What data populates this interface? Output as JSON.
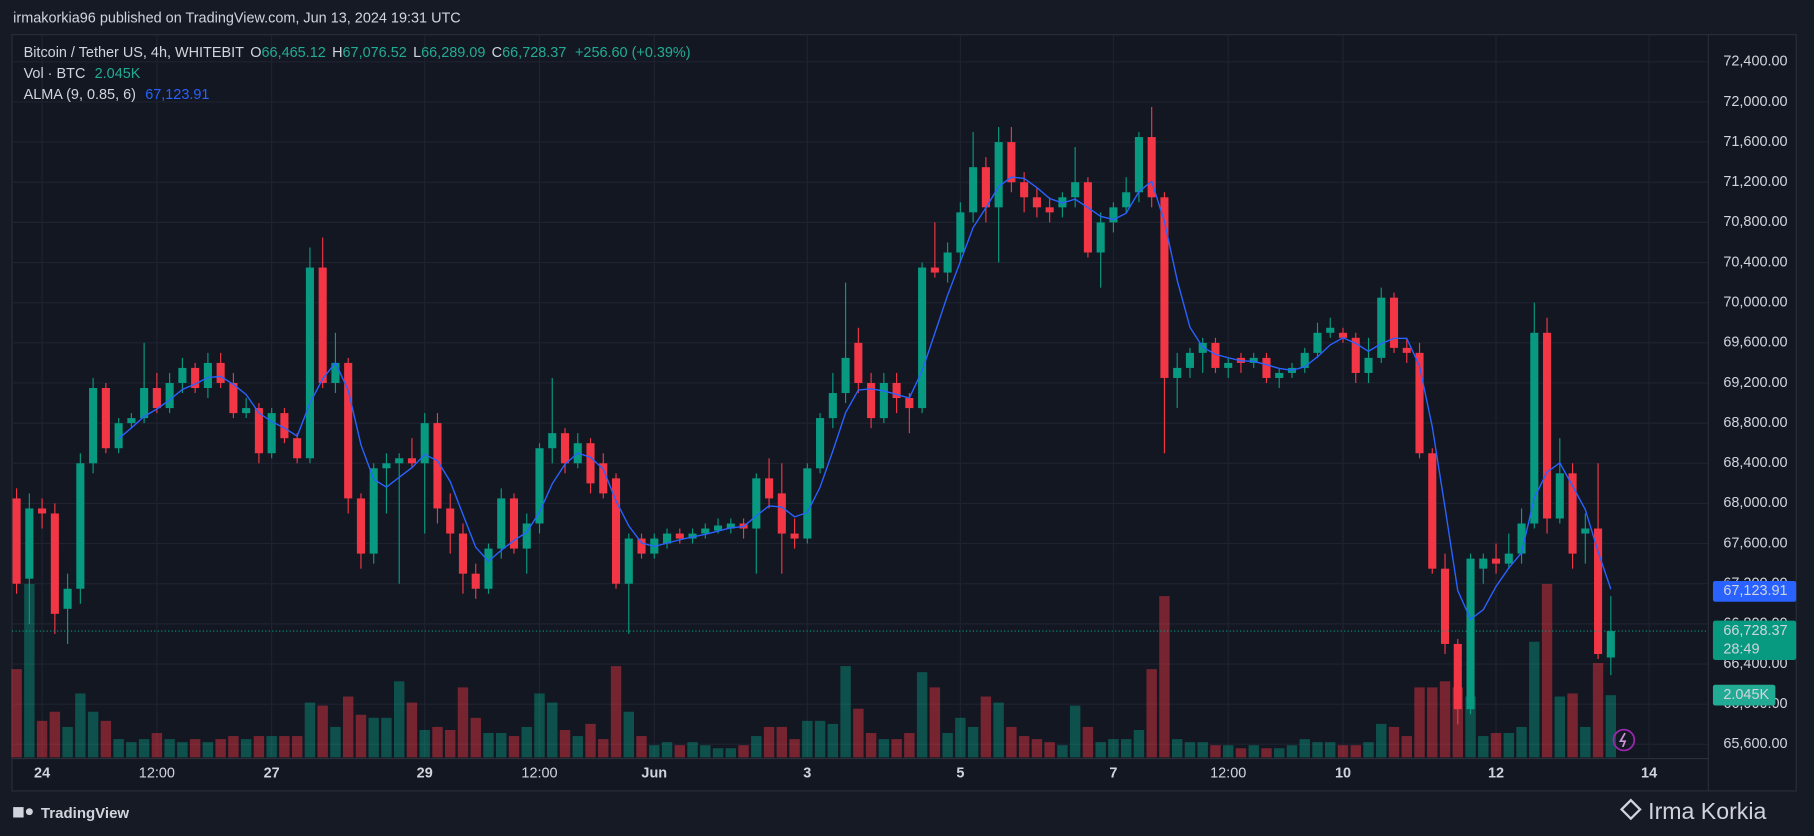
{
  "header": {
    "publisher": "irmakorkia96 published on TradingView.com, Jun 13, 2024 19:31 UTC"
  },
  "footer": {
    "brand": "TradingView",
    "watermark": "Irma Korkia"
  },
  "chart_data": {
    "type": "candlestick",
    "symbol": "Bitcoin / Tether US, 4h, WHITEBIT",
    "legend": {
      "open_label": "O",
      "open": "66,465.12",
      "high_label": "H",
      "high": "67,076.52",
      "low_label": "L",
      "low": "66,289.09",
      "close_label": "C",
      "close": "66,728.37",
      "change": "+256.60 (+0.39%)"
    },
    "volume_label": "Vol · BTC",
    "volume_value": "2.045K",
    "indicator_label": "ALMA (9, 0.85, 6)",
    "indicator_value": "67,123.91",
    "alma_params": [
      9,
      0.85,
      6
    ],
    "alma_color": "#2962ff",
    "up_color": "#089981",
    "down_color": "#f23645",
    "ohlc": [
      [
        68050,
        68150,
        67100,
        67200
      ],
      [
        67250,
        68100,
        66800,
        67950
      ],
      [
        67950,
        68050,
        67750,
        67900
      ],
      [
        67900,
        68000,
        66700,
        66900
      ],
      [
        66950,
        67300,
        66600,
        67150
      ],
      [
        67150,
        68500,
        67000,
        68400
      ],
      [
        68400,
        69250,
        68300,
        69150
      ],
      [
        69150,
        69200,
        68500,
        68550
      ],
      [
        68550,
        68850,
        68500,
        68800
      ],
      [
        68800,
        68900,
        68750,
        68850
      ],
      [
        68850,
        69600,
        68800,
        69150
      ],
      [
        69150,
        69300,
        68900,
        68950
      ],
      [
        68950,
        69300,
        68900,
        69200
      ],
      [
        69200,
        69450,
        69100,
        69350
      ],
      [
        69350,
        69400,
        69100,
        69150
      ],
      [
        69150,
        69500,
        69050,
        69400
      ],
      [
        69400,
        69500,
        69150,
        69200
      ],
      [
        69200,
        69300,
        68850,
        68900
      ],
      [
        68900,
        69050,
        68850,
        68950
      ],
      [
        68950,
        69000,
        68400,
        68500
      ],
      [
        68500,
        68950,
        68450,
        68900
      ],
      [
        68900,
        68950,
        68600,
        68650
      ],
      [
        68650,
        68700,
        68400,
        68450
      ],
      [
        68450,
        70550,
        68400,
        70350
      ],
      [
        70350,
        70650,
        69150,
        69200
      ],
      [
        69200,
        69700,
        69100,
        69400
      ],
      [
        69400,
        69450,
        67900,
        68050
      ],
      [
        68050,
        68100,
        67350,
        67500
      ],
      [
        67500,
        68400,
        67400,
        68350
      ],
      [
        68350,
        68500,
        67900,
        68400
      ],
      [
        68400,
        68500,
        67200,
        68450
      ],
      [
        68450,
        68650,
        68350,
        68400
      ],
      [
        68400,
        68900,
        67700,
        68800
      ],
      [
        68800,
        68900,
        67800,
        67950
      ],
      [
        67950,
        68100,
        67500,
        67700
      ],
      [
        67700,
        67800,
        67100,
        67300
      ],
      [
        67300,
        67400,
        67050,
        67150
      ],
      [
        67150,
        67600,
        67100,
        67550
      ],
      [
        67550,
        68150,
        67450,
        68050
      ],
      [
        68050,
        68100,
        67500,
        67550
      ],
      [
        67550,
        67900,
        67300,
        67800
      ],
      [
        67800,
        68600,
        67700,
        68550
      ],
      [
        68550,
        69250,
        68400,
        68700
      ],
      [
        68700,
        68750,
        68300,
        68400
      ],
      [
        68400,
        68700,
        68350,
        68600
      ],
      [
        68600,
        68650,
        68100,
        68200
      ],
      [
        68400,
        68500,
        68050,
        68100
      ],
      [
        68250,
        68300,
        67150,
        67200
      ],
      [
        67200,
        67700,
        66700,
        67650
      ],
      [
        67650,
        67700,
        67450,
        67500
      ],
      [
        67500,
        67700,
        67450,
        67650
      ],
      [
        67600,
        67750,
        67550,
        67700
      ],
      [
        67700,
        67750,
        67600,
        67650
      ],
      [
        67650,
        67750,
        67600,
        67700
      ],
      [
        67700,
        67800,
        67650,
        67750
      ],
      [
        67730,
        67850,
        67700,
        67780
      ],
      [
        67750,
        67850,
        67700,
        67800
      ],
      [
        67800,
        67850,
        67650,
        67750
      ],
      [
        67750,
        68300,
        67300,
        68250
      ],
      [
        68250,
        68450,
        67950,
        68050
      ],
      [
        68100,
        68400,
        67300,
        67700
      ],
      [
        67700,
        67850,
        67550,
        67650
      ],
      [
        67650,
        68400,
        67600,
        68350
      ],
      [
        68350,
        68900,
        68300,
        68850
      ],
      [
        68850,
        69300,
        68750,
        69100
      ],
      [
        69100,
        70200,
        69000,
        69450
      ],
      [
        69600,
        69750,
        69100,
        69200
      ],
      [
        69200,
        69300,
        68750,
        68850
      ],
      [
        68850,
        69300,
        68800,
        69200
      ],
      [
        69200,
        69300,
        68900,
        69050
      ],
      [
        69050,
        69100,
        68700,
        68950
      ],
      [
        68950,
        70400,
        68900,
        70350
      ],
      [
        70350,
        70800,
        70250,
        70300
      ],
      [
        70300,
        70600,
        70200,
        70500
      ],
      [
        70500,
        71000,
        70400,
        70900
      ],
      [
        70900,
        71700,
        70800,
        71350
      ],
      [
        71350,
        71450,
        70800,
        70950
      ],
      [
        70950,
        71750,
        70400,
        71600
      ],
      [
        71600,
        71750,
        71100,
        71200
      ],
      [
        71200,
        71300,
        70900,
        71050
      ],
      [
        71050,
        71150,
        70850,
        70950
      ],
      [
        70950,
        71050,
        70800,
        70900
      ],
      [
        70950,
        71100,
        70850,
        71050
      ],
      [
        71050,
        71550,
        70950,
        71200
      ],
      [
        71200,
        71250,
        70450,
        70500
      ],
      [
        70500,
        70900,
        70150,
        70800
      ],
      [
        70800,
        71000,
        70700,
        70950
      ],
      [
        70950,
        71250,
        70900,
        71100
      ],
      [
        71100,
        71700,
        71000,
        71650
      ],
      [
        71650,
        71950,
        70950,
        71050
      ],
      [
        71050,
        71100,
        68500,
        69250
      ],
      [
        69250,
        69500,
        68950,
        69350
      ],
      [
        69350,
        69550,
        69250,
        69500
      ],
      [
        69500,
        69650,
        69300,
        69600
      ],
      [
        69600,
        69650,
        69300,
        69350
      ],
      [
        69350,
        69450,
        69250,
        69400
      ],
      [
        69450,
        69500,
        69300,
        69400
      ],
      [
        69400,
        69500,
        69350,
        69450
      ],
      [
        69450,
        69500,
        69200,
        69250
      ],
      [
        69250,
        69350,
        69150,
        69300
      ],
      [
        69300,
        69400,
        69250,
        69350
      ],
      [
        69350,
        69550,
        69300,
        69500
      ],
      [
        69500,
        69800,
        69450,
        69700
      ],
      [
        69700,
        69850,
        69650,
        69750
      ],
      [
        69700,
        69750,
        69600,
        69650
      ],
      [
        69650,
        69700,
        69200,
        69300
      ],
      [
        69300,
        69650,
        69200,
        69450
      ],
      [
        69450,
        70150,
        69400,
        70050
      ],
      [
        70050,
        70100,
        69500,
        69550
      ],
      [
        69550,
        69650,
        69400,
        69500
      ],
      [
        69500,
        69600,
        68450,
        68500
      ],
      [
        68500,
        68550,
        67300,
        67350
      ],
      [
        67350,
        67500,
        66500,
        66600
      ],
      [
        66600,
        66650,
        65800,
        65950
      ],
      [
        65950,
        67500,
        65900,
        67450
      ],
      [
        67350,
        67500,
        67200,
        67450
      ],
      [
        67450,
        67600,
        67300,
        67400
      ],
      [
        67400,
        67700,
        67350,
        67500
      ],
      [
        67500,
        67950,
        67400,
        67800
      ],
      [
        67800,
        70000,
        67750,
        69700
      ],
      [
        69700,
        69850,
        67700,
        67850
      ],
      [
        67850,
        68650,
        67800,
        68300
      ],
      [
        68300,
        68400,
        67350,
        67500
      ],
      [
        67700,
        67900,
        67400,
        67750
      ],
      [
        67750,
        68400,
        66450,
        66500
      ],
      [
        66465.12,
        67076.52,
        66289.09,
        66728.37
      ]
    ],
    "volume": [
      2900,
      5700,
      1200,
      1500,
      1000,
      2100,
      1500,
      1200,
      600,
      500,
      600,
      800,
      600,
      500,
      600,
      500,
      600,
      700,
      600,
      700,
      700,
      700,
      700,
      1800,
      1700,
      1000,
      2000,
      1400,
      1300,
      1300,
      2500,
      1800,
      900,
      1000,
      900,
      2300,
      1300,
      800,
      800,
      700,
      1000,
      2100,
      1800,
      900,
      700,
      1100,
      600,
      3000,
      1500,
      700,
      400,
      500,
      400,
      500,
      400,
      300,
      300,
      400,
      700,
      1000,
      1000,
      600,
      1200,
      1200,
      1100,
      3000,
      1600,
      800,
      600,
      600,
      800,
      2800,
      2300,
      800,
      1300,
      1000,
      2000,
      1800,
      1000,
      700,
      600,
      500,
      400,
      1700,
      1000,
      500,
      600,
      600,
      900,
      2900,
      5300,
      600,
      500,
      500,
      400,
      400,
      300,
      400,
      300,
      300,
      400,
      600,
      500,
      500,
      400,
      400,
      500,
      1100,
      1000,
      700,
      2300,
      2300,
      2500,
      2300,
      2000,
      700,
      800,
      800,
      1000,
      3800,
      5700,
      2000,
      2100,
      1000,
      3100,
      2045
    ],
    "ylim": [
      65470,
      72670
    ],
    "yticks": [
      {
        "value": 65600,
        "label": "65,600.00"
      },
      {
        "value": 66000,
        "label": "66,000.00"
      },
      {
        "value": 66400,
        "label": "66,400.00"
      },
      {
        "value": 66800,
        "label": "66,800.00"
      },
      {
        "value": 67200,
        "label": "67,200.00"
      },
      {
        "value": 67600,
        "label": "67,600.00"
      },
      {
        "value": 68000,
        "label": "68,000.00"
      },
      {
        "value": 68400,
        "label": "68,400.00"
      },
      {
        "value": 68800,
        "label": "68,800.00"
      },
      {
        "value": 69200,
        "label": "69,200.00"
      },
      {
        "value": 69600,
        "label": "69,600.00"
      },
      {
        "value": 70000,
        "label": "70,000.00"
      },
      {
        "value": 70400,
        "label": "70,400.00"
      },
      {
        "value": 70800,
        "label": "70,800.00"
      },
      {
        "value": 71200,
        "label": "71,200.00"
      },
      {
        "value": 71600,
        "label": "71,600.00"
      },
      {
        "value": 72000,
        "label": "72,000.00"
      },
      {
        "value": 72400,
        "label": "72,400.00"
      }
    ],
    "xticks": [
      {
        "value": 2,
        "label": "24"
      },
      {
        "value": 11,
        "label": "12:00"
      },
      {
        "value": 20,
        "label": "27"
      },
      {
        "value": 32,
        "label": "29"
      },
      {
        "value": 41,
        "label": "12:00"
      },
      {
        "value": 50,
        "label": "Jun"
      },
      {
        "value": 62,
        "label": "3"
      },
      {
        "value": 74,
        "label": "5"
      },
      {
        "value": 86,
        "label": "7"
      },
      {
        "value": 95,
        "label": "12:00"
      },
      {
        "value": 104,
        "label": "10"
      },
      {
        "value": 116,
        "label": "12"
      },
      {
        "value": 128,
        "label": "14"
      }
    ],
    "last_price": {
      "value": 66728.37,
      "label": "66,728.37"
    },
    "countdown": "28:49",
    "alma_tag": {
      "value": 67123.91,
      "label": "67,123.91"
    },
    "volume_tag": {
      "value": 2045,
      "label": "2.045K"
    }
  }
}
